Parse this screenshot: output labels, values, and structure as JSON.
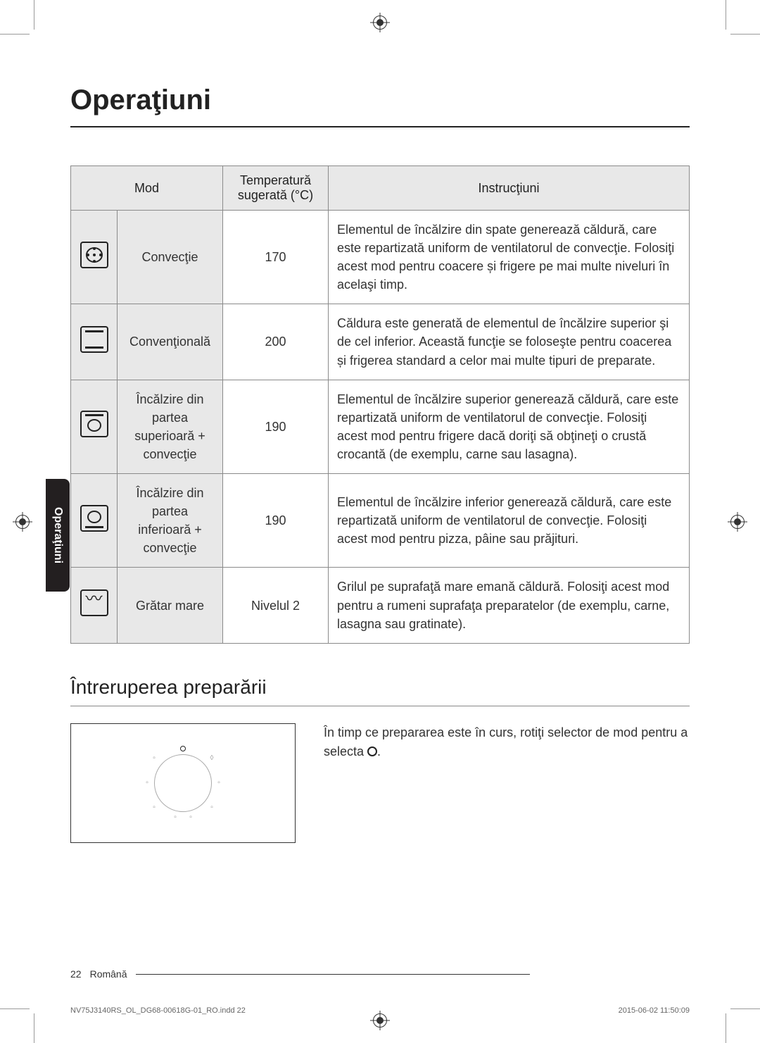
{
  "page": {
    "title": "Operaţiuni",
    "side_tab": "Operaţiuni",
    "page_number": "22",
    "language": "Română",
    "print_file": "NV75J3140RS_OL_DG68-00618G-01_RO.indd   22",
    "print_timestamp": "2015-06-02   ‎11:50:09"
  },
  "table": {
    "headers": {
      "mode": "Mod",
      "temp": "Temperatură sugerată (°C)",
      "instr": "Instrucţiuni"
    },
    "rows": [
      {
        "name": "Convecţie",
        "temp": "170",
        "instr": "Elementul de încălzire din spate generează căldură, care este repartizată uniform de ventilatorul de convecţie. Folosiţi acest mod pentru coacere și frigere pe mai multe niveluri în acelaşi timp."
      },
      {
        "name": "Convenţională",
        "temp": "200",
        "instr": "Căldura este generată de elementul de încălzire superior şi de cel inferior. Această funcţie se foloseşte pentru coacerea și frigerea standard a celor mai multe tipuri de preparate."
      },
      {
        "name": "Încălzire din partea superioară + convecţie",
        "temp": "190",
        "instr": "Elementul de încălzire superior generează căldură, care este repartizată uniform de ventilatorul de convecţie. Folosiţi acest mod pentru frigere dacă doriţi să obţineţi o crustă crocantă (de exemplu, carne sau lasagna)."
      },
      {
        "name": "Încălzire din partea inferioară + convecţie",
        "temp": "190",
        "instr": "Elementul de încălzire inferior generează căldură, care este repartizată uniform de ventilatorul de convecţie. Folosiţi acest mod pentru pizza, pâine sau prăjituri."
      },
      {
        "name": "Grătar mare",
        "temp": "Nivelul 2",
        "instr": "Grilul pe suprafaţă mare emană căldură. Folosiţi acest mod pentru a rumeni suprafaţa preparatelor (de exemplu, carne, lasagna sau gratinate)."
      }
    ]
  },
  "section": {
    "title": "Întreruperea preparării",
    "text_pre": "În timp ce prepararea este în curs, rotiţi selector de mod pentru a selecta ",
    "text_post": "."
  },
  "colors": {
    "header_bg": "#e8e8e8",
    "border": "#8a8a8a",
    "text": "#333333",
    "tab_bg": "#231f20"
  }
}
